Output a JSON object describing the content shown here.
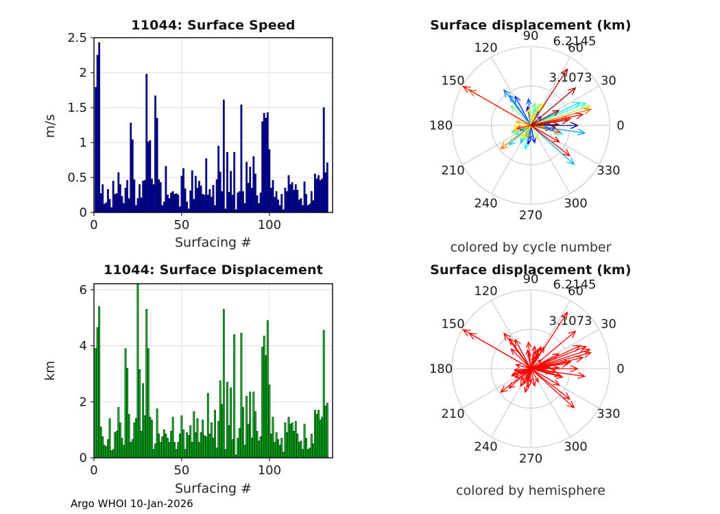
{
  "figure": {
    "background": "#FFFFFF",
    "footer_note": "Argo WHOI 10-Jan-2026"
  },
  "chart_data": [
    {
      "id": "surface-speed-bars",
      "type": "bar",
      "title": "11044: Surface Speed",
      "xlabel": "Surfacing #",
      "ylabel": "m/s",
      "xlim": [
        0,
        136
      ],
      "ylim": [
        0,
        2.5
      ],
      "xticks": [
        0,
        50,
        100
      ],
      "yticks": [
        0,
        0.5,
        1,
        1.5,
        2,
        2.5
      ],
      "ytick_labels": [
        "0",
        "0.5",
        "1",
        "1.5",
        "2",
        "2.5"
      ],
      "grid": true,
      "bar_color": "#0000CD",
      "bar_edge_color": "#000000",
      "values": [
        1.79,
        2.25,
        2.43,
        0.27,
        0.4,
        0.12,
        0.14,
        0.33,
        0.19,
        0.07,
        0.45,
        0.26,
        0.27,
        0.57,
        0.4,
        0.23,
        0.13,
        0.35,
        0.46,
        0.2,
        1.28,
        1.04,
        0.47,
        0.1,
        0.2,
        0.4,
        0.21,
        0.45,
        0.46,
        1.98,
        1.01,
        1.03,
        0.48,
        0.4,
        1.67,
        1.35,
        0.47,
        0.43,
        0.1,
        0.15,
        0.66,
        0.25,
        0.2,
        0.28,
        0.3,
        0.26,
        0.27,
        0.25,
        0.08,
        0.52,
        0.63,
        0.34,
        0.15,
        0.05,
        0.31,
        0.6,
        0.19,
        0.52,
        0.35,
        0.45,
        0.38,
        0.26,
        0.25,
        0.77,
        0.25,
        0.33,
        0.22,
        0.39,
        0.1,
        0.47,
        0.95,
        0.58,
        0.3,
        1.61,
        0.05,
        0.86,
        0.29,
        0.59,
        0.25,
        0.86,
        0.04,
        0.28,
        0.3,
        1.54,
        0.3,
        0.13,
        0.72,
        0.42,
        0.65,
        0.35,
        0.8,
        0.55,
        0.24,
        0.13,
        0.28,
        1.3,
        1.42,
        1.35,
        1.43,
        0.9,
        0.35,
        0.46,
        0.22,
        0.3,
        0.18,
        0.1,
        0.26,
        0.04,
        0.35,
        0.3,
        0.53,
        0.4,
        0.43,
        0.32,
        0.4,
        0.32,
        0.18,
        0.2,
        0.1,
        0.44,
        0.26,
        0.1,
        0.12,
        0.3,
        0.17,
        0.55,
        0.48,
        0.53,
        0.46,
        0.48,
        1.5,
        0.57,
        0.71
      ]
    },
    {
      "id": "surface-displacement-polar-by-cycle",
      "type": "polar-quiver",
      "title": "Surface displacement (km)",
      "caption": "colored by cycle number",
      "rmax": 6.2145,
      "rticks": [
        3.1073,
        6.2145
      ],
      "rtick_labels": [
        "3.1073",
        "6.2145"
      ],
      "angle_tick_labels": [
        "0",
        "30",
        "60",
        "90",
        "120",
        "150",
        "180",
        "210",
        "240",
        "270",
        "300",
        "330"
      ],
      "colormap": "jet",
      "grid_color": "#C9C9C9",
      "arrows_angle_km": [
        [
          0,
          3.7
        ],
        [
          353,
          2.0
        ],
        [
          8,
          1.2
        ],
        [
          100,
          1.5
        ],
        [
          262,
          1.5
        ],
        [
          40,
          1.1
        ],
        [
          205,
          0.9
        ],
        [
          348,
          1.6
        ],
        [
          283,
          1.4
        ],
        [
          62,
          1.3
        ],
        [
          118,
          2.6
        ],
        [
          95,
          2.1
        ],
        [
          270,
          1.1
        ],
        [
          5,
          1.5
        ],
        [
          127,
          3.5
        ],
        [
          125,
          2.9
        ],
        [
          352,
          4.3
        ],
        [
          318,
          4.6
        ],
        [
          240,
          1.6
        ],
        [
          222,
          2.3
        ],
        [
          25,
          4.3
        ],
        [
          257,
          1.9
        ],
        [
          75,
          1.4
        ],
        [
          345,
          2.6
        ],
        [
          210,
          1.4
        ],
        [
          22,
          4.7
        ],
        [
          201,
          1.6
        ],
        [
          80,
          1.8
        ],
        [
          135,
          2.2
        ],
        [
          246,
          1.3
        ],
        [
          65,
          1.9
        ],
        [
          18,
          4.9
        ],
        [
          300,
          1.2
        ],
        [
          68,
          1.6
        ],
        [
          96,
          1.3
        ],
        [
          58,
          2.0
        ],
        [
          230,
          1.2
        ],
        [
          185,
          1.3
        ],
        [
          75,
          1.0
        ],
        [
          197,
          1.5
        ],
        [
          165,
          1.2
        ],
        [
          252,
          1.0
        ],
        [
          355,
          1.1
        ],
        [
          218,
          3.0
        ],
        [
          15,
          4.9
        ],
        [
          150,
          5.6
        ],
        [
          347,
          2.4
        ],
        [
          10,
          3.2
        ],
        [
          192,
          1.1
        ],
        [
          150,
          6.15
        ],
        [
          322,
          3.9
        ],
        [
          12,
          4.2
        ],
        [
          330,
          2.6
        ],
        [
          8,
          3.0
        ],
        [
          57,
          5.3
        ],
        [
          40,
          4.6
        ],
        [
          28,
          2.5
        ],
        [
          2,
          2.2
        ]
      ]
    },
    {
      "id": "surface-displacement-bars",
      "type": "bar",
      "title": "11044: Surface Displacement",
      "xlabel": "Surfacing #",
      "ylabel": "km",
      "xlim": [
        0,
        136
      ],
      "ylim": [
        0,
        6.2145
      ],
      "xticks": [
        0,
        50,
        100
      ],
      "yticks": [
        0,
        2,
        4,
        6
      ],
      "ytick_labels": [
        "0",
        "2",
        "4",
        "6"
      ],
      "grid": true,
      "bar_color": "#00C81E",
      "bar_edge_color": "#000000",
      "values": [
        3.9,
        4.65,
        5.4,
        1.1,
        0.75,
        0.45,
        0.4,
        0.65,
        1.4,
        0.25,
        0.3,
        0.9,
        0.95,
        1.8,
        1.25,
        0.7,
        0.45,
        3.9,
        3.2,
        1.55,
        0.55,
        0.65,
        1.25,
        1.4,
        6.2,
        3.15,
        0.95,
        2.65,
        1.5,
        5.3,
        3.9,
        1.45,
        1.35,
        0.3,
        0.5,
        1.75,
        0.85,
        0.55,
        0.75,
        1.0,
        0.85,
        0.7,
        0.55,
        0.95,
        1.45,
        0.55,
        0.3,
        0.55,
        0.85,
        1.5,
        1.0,
        0.3,
        0.9,
        0.8,
        1.15,
        0.55,
        1.65,
        0.9,
        1.4,
        0.55,
        0.9,
        1.35,
        0.8,
        0.75,
        2.3,
        0.85,
        1.25,
        0.7,
        1.7,
        0.35,
        1.3,
        2.75,
        1.9,
        5.3,
        0.3,
        2.7,
        1.15,
        2.5,
        0.65,
        4.4,
        0.1,
        0.7,
        1.05,
        4.45,
        1.8,
        0.45,
        2.2,
        1.2,
        2.35,
        0.7,
        2.35,
        1.65,
        0.95,
        0.6,
        0.75,
        3.95,
        4.35,
        3.65,
        4.9,
        2.6,
        0.85,
        1.45,
        0.55,
        0.9,
        0.65,
        0.45,
        0.7,
        0.2,
        1.25,
        0.9,
        1.45,
        1.2,
        1.25,
        0.95,
        1.3,
        0.85,
        0.55,
        0.6,
        0.3,
        1.2,
        0.7,
        0.3,
        0.35,
        0.85,
        0.5,
        1.7,
        1.55,
        1.7,
        1.35,
        1.45,
        4.55,
        1.85,
        1.95
      ]
    },
    {
      "id": "surface-displacement-polar-by-hemisphere",
      "type": "polar-quiver",
      "title": "Surface displacement (km)",
      "caption": "colored by hemisphere",
      "rmax": 6.2145,
      "rticks": [
        3.1073,
        6.2145
      ],
      "rtick_labels": [
        "3.1073",
        "6.2145"
      ],
      "angle_tick_labels": [
        "0",
        "30",
        "60",
        "90",
        "120",
        "150",
        "180",
        "210",
        "240",
        "270",
        "300",
        "330"
      ],
      "arrow_color": "#FF0000",
      "grid_color": "#C9C9C9",
      "arrows_angle_km": [
        [
          0,
          3.7
        ],
        [
          353,
          2.0
        ],
        [
          8,
          1.2
        ],
        [
          100,
          1.5
        ],
        [
          262,
          1.5
        ],
        [
          40,
          1.1
        ],
        [
          205,
          0.9
        ],
        [
          348,
          1.6
        ],
        [
          283,
          1.4
        ],
        [
          62,
          1.3
        ],
        [
          118,
          2.6
        ],
        [
          95,
          2.1
        ],
        [
          270,
          1.1
        ],
        [
          5,
          1.5
        ],
        [
          127,
          3.5
        ],
        [
          125,
          2.9
        ],
        [
          352,
          4.3
        ],
        [
          318,
          4.6
        ],
        [
          240,
          1.6
        ],
        [
          222,
          2.3
        ],
        [
          25,
          4.3
        ],
        [
          257,
          1.9
        ],
        [
          75,
          1.4
        ],
        [
          345,
          2.6
        ],
        [
          210,
          1.4
        ],
        [
          22,
          4.7
        ],
        [
          201,
          1.6
        ],
        [
          80,
          1.8
        ],
        [
          135,
          2.2
        ],
        [
          246,
          1.3
        ],
        [
          65,
          1.9
        ],
        [
          18,
          4.9
        ],
        [
          300,
          1.2
        ],
        [
          68,
          1.6
        ],
        [
          96,
          1.3
        ],
        [
          58,
          2.0
        ],
        [
          230,
          1.2
        ],
        [
          185,
          1.3
        ],
        [
          75,
          1.0
        ],
        [
          197,
          1.5
        ],
        [
          165,
          1.2
        ],
        [
          252,
          1.0
        ],
        [
          355,
          1.1
        ],
        [
          218,
          3.0
        ],
        [
          15,
          4.9
        ],
        [
          150,
          5.6
        ],
        [
          347,
          2.4
        ],
        [
          10,
          3.2
        ],
        [
          192,
          1.1
        ],
        [
          150,
          6.15
        ],
        [
          322,
          3.9
        ],
        [
          12,
          4.2
        ],
        [
          330,
          2.6
        ],
        [
          8,
          3.0
        ],
        [
          57,
          5.3
        ],
        [
          40,
          4.6
        ],
        [
          28,
          2.5
        ],
        [
          2,
          2.2
        ]
      ]
    }
  ]
}
